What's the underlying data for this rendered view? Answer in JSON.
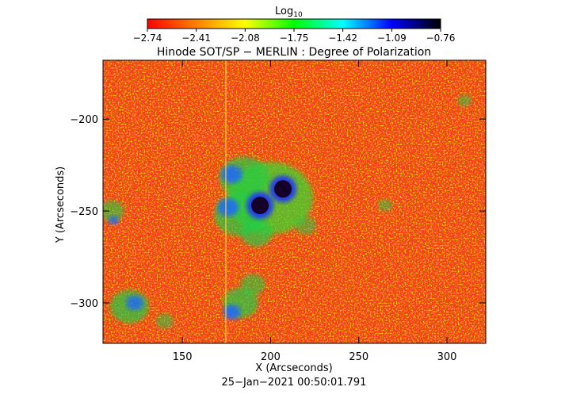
{
  "colorbar": {
    "label": "Log",
    "label_sub": "10",
    "ticks": [
      "−2.74",
      "−2.41",
      "−2.08",
      "−1.75",
      "−1.42",
      "−1.09",
      "−0.76"
    ],
    "colors": [
      "#ff0000",
      "#ff8000",
      "#ffff00",
      "#00ff00",
      "#00ffff",
      "#0000ff",
      "#000000"
    ]
  },
  "chart_data": {
    "type": "heatmap",
    "title": "Hinode SOT/SP − MERLIN : Degree of Polarization",
    "xlabel": "X (Arcseconds)",
    "ylabel": "Y (Arcseconds)",
    "xlim": [
      105,
      322
    ],
    "ylim": [
      -322,
      -168
    ],
    "xticks": [
      150,
      200,
      250,
      300
    ],
    "yticks": [
      -200,
      -250,
      -300
    ],
    "zlim": [
      -2.74,
      -0.76
    ],
    "timestamp": "25−Jan−2021 00:50:01.791",
    "features": [
      {
        "x": 194,
        "y": -247,
        "z": -0.8
      },
      {
        "x": 207,
        "y": -238,
        "z": -0.8
      }
    ]
  }
}
